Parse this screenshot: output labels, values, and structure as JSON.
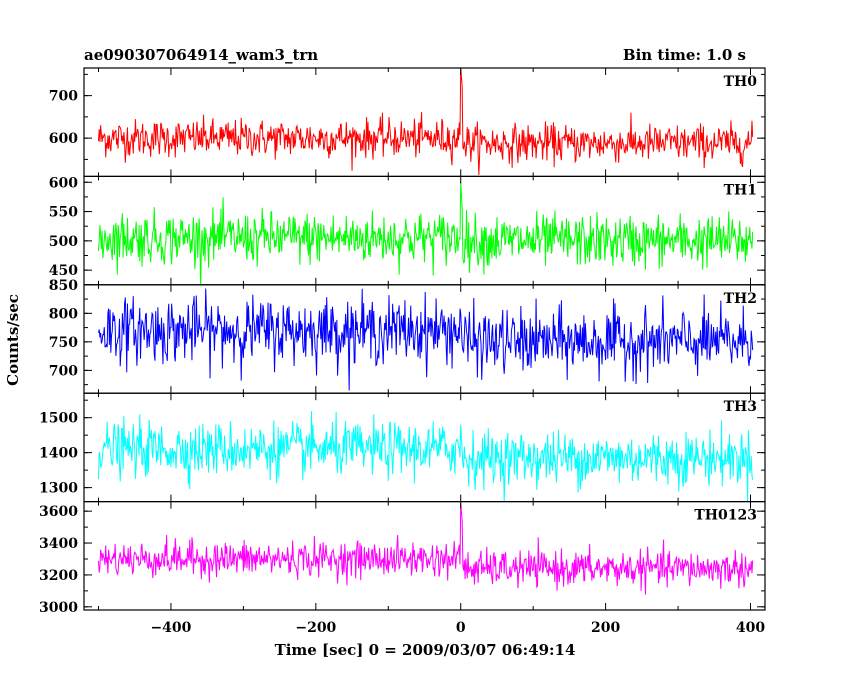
{
  "chart_data": {
    "type": "line",
    "title": "ae090307064914_wam3_trn",
    "subtitle": "Bin time: 1.0 s",
    "xlabel": "Time [sec] 0 = 2009/03/07 06:49:14",
    "ylabel": "Counts/sec",
    "xlim": [
      -520,
      420
    ],
    "x_ticks": [
      -400,
      -200,
      0,
      200,
      400
    ],
    "x_ticklabels": [
      "−400",
      "−200",
      "0",
      "200",
      "400"
    ],
    "x_range": [
      -500,
      403
    ],
    "bin": 1.0,
    "grid": false,
    "panels": [
      {
        "name": "TH0",
        "color": "#ff0000",
        "ylim": [
          510,
          765
        ],
        "yticks": [
          600,
          700
        ],
        "yticklabels": [
          "600",
          "700"
        ],
        "base_before": 600,
        "base_after": 588,
        "noise": 22,
        "spike_peak": 765
      },
      {
        "name": "TH1",
        "color": "#00ff00",
        "ylim": [
          425,
          610
        ],
        "yticks": [
          450,
          500,
          550,
          600
        ],
        "yticklabels": [
          "450",
          "500",
          "550",
          "600"
        ],
        "base_before": 505,
        "base_after": 500,
        "noise": 22,
        "spike_peak": 600
      },
      {
        "name": "TH2",
        "color": "#0000ff",
        "ylim": [
          660,
          850
        ],
        "yticks": [
          700,
          750,
          800,
          850
        ],
        "yticklabels": [
          "700",
          "750",
          "800",
          "850"
        ],
        "base_before": 770,
        "base_after": 750,
        "noise": 28,
        "spike_peak": 800
      },
      {
        "name": "TH3",
        "color": "#00ffff",
        "ylim": [
          1260,
          1570
        ],
        "yticks": [
          1300,
          1400,
          1500
        ],
        "yticklabels": [
          "1300",
          "1400",
          "1500"
        ],
        "base_before": 1410,
        "base_after": 1385,
        "noise": 38,
        "spike_peak": 1480
      },
      {
        "name": "TH0123",
        "color": "#ff00ff",
        "ylim": [
          2980,
          3660
        ],
        "yticks": [
          3000,
          3200,
          3400,
          3600
        ],
        "yticklabels": [
          "3000",
          "3200",
          "3400",
          "3600"
        ],
        "base_before": 3300,
        "base_after": 3240,
        "noise": 55,
        "spike_peak": 3650
      }
    ]
  }
}
